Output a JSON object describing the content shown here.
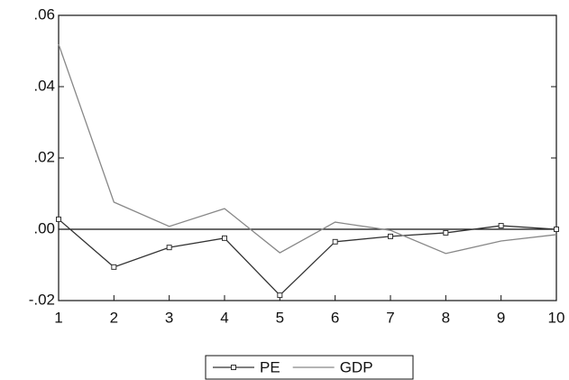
{
  "chart_data": {
    "type": "line",
    "x": [
      1,
      2,
      3,
      4,
      5,
      6,
      7,
      8,
      9,
      10
    ],
    "xlim": [
      1,
      10
    ],
    "xticks": [
      1,
      2,
      3,
      4,
      5,
      6,
      7,
      8,
      9,
      10
    ],
    "ylim": [
      -0.02,
      0.06
    ],
    "yticks": [
      {
        "value": -0.02,
        "label": "-.02"
      },
      {
        "value": 0,
        "label": ".00"
      },
      {
        "value": 0.02,
        "label": ".02"
      },
      {
        "value": 0.04,
        "label": ".04"
      },
      {
        "value": 0.06,
        "label": ".06"
      }
    ],
    "zero_line": true,
    "grid": false,
    "legend": "bottom",
    "series": [
      {
        "name": "PE",
        "color": "#333333",
        "marker": "square",
        "values": [
          0.0028,
          -0.0106,
          -0.0051,
          -0.0025,
          -0.0185,
          -0.0035,
          -0.002,
          -0.001,
          0.001,
          0.0
        ]
      },
      {
        "name": "GDP",
        "color": "#888888",
        "values": [
          0.0519,
          0.0076,
          0.0008,
          0.0058,
          -0.0066,
          0.002,
          -0.0003,
          -0.0068,
          -0.0033,
          -0.0015
        ]
      }
    ]
  }
}
